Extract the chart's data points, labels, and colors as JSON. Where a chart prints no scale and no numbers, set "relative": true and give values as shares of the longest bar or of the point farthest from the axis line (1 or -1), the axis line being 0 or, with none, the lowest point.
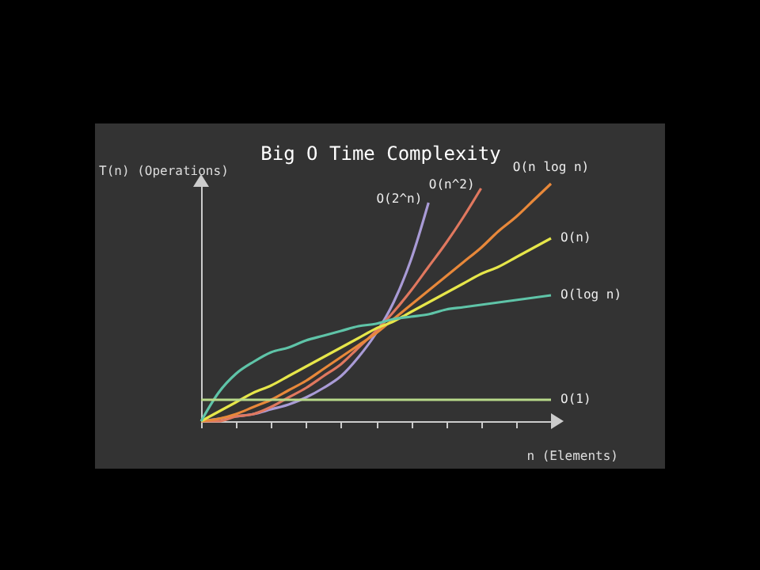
{
  "chart_data": {
    "type": "line",
    "title": "Big O Time Complexity",
    "xlabel": "n (Elements)",
    "ylabel": "T(n) (Operations)",
    "relative": true,
    "legend": false,
    "grid": false,
    "categories": [
      null,
      null,
      null,
      null,
      null,
      null,
      null,
      null,
      null,
      null,
      null,
      null,
      null,
      null,
      null,
      null,
      null,
      null,
      null,
      null,
      null
    ],
    "series": [
      {
        "name": "O(2^n)",
        "color": "#a99bd6",
        "values": [
          0,
          0.01,
          0.02,
          0.03,
          0.05,
          0.07,
          0.1,
          0.14,
          0.19,
          0.27,
          0.37,
          0.5,
          0.68,
          0.92,
          null,
          null,
          null,
          null,
          null,
          null,
          null
        ]
      },
      {
        "name": "O(n^2)",
        "color": "#e0785f",
        "values": [
          0,
          0,
          0.02,
          0.03,
          0.06,
          0.1,
          0.14,
          0.19,
          0.24,
          0.31,
          0.38,
          0.46,
          0.55,
          0.65,
          0.75,
          0.86,
          0.98,
          null,
          null,
          null,
          null
        ]
      },
      {
        "name": "O(n log n)",
        "color": "#e8883a",
        "values": [
          0,
          0.01,
          0.03,
          0.06,
          0.09,
          0.13,
          0.17,
          0.22,
          0.27,
          0.32,
          0.37,
          0.43,
          0.49,
          0.55,
          0.61,
          0.67,
          0.73,
          0.8,
          0.86,
          0.93,
          1
        ]
      },
      {
        "name": "O(n)",
        "color": "#e6e64a",
        "values": [
          0,
          0.04,
          0.08,
          0.12,
          0.15,
          0.19,
          0.23,
          0.27,
          0.31,
          0.35,
          0.39,
          0.42,
          0.46,
          0.5,
          0.54,
          0.58,
          0.62,
          0.65,
          0.69,
          0.73,
          0.77
        ]
      },
      {
        "name": "O(log n)",
        "color": "#5fc4a8",
        "values": [
          0,
          0.12,
          0.2,
          0.25,
          0.29,
          0.31,
          0.34,
          0.36,
          0.38,
          0.4,
          0.41,
          0.43,
          0.44,
          0.45,
          0.47,
          0.48,
          0.49,
          0.5,
          0.51,
          0.52,
          0.53
        ]
      },
      {
        "name": "O(1)",
        "color": "#b8d98a",
        "values": [
          0.09,
          0.09,
          0.09,
          0.09,
          0.09,
          0.09,
          0.09,
          0.09,
          0.09,
          0.09,
          0.09,
          0.09,
          0.09,
          0.09,
          0.09,
          0.09,
          0.09,
          0.09,
          0.09,
          0.09,
          0.09
        ]
      }
    ]
  }
}
